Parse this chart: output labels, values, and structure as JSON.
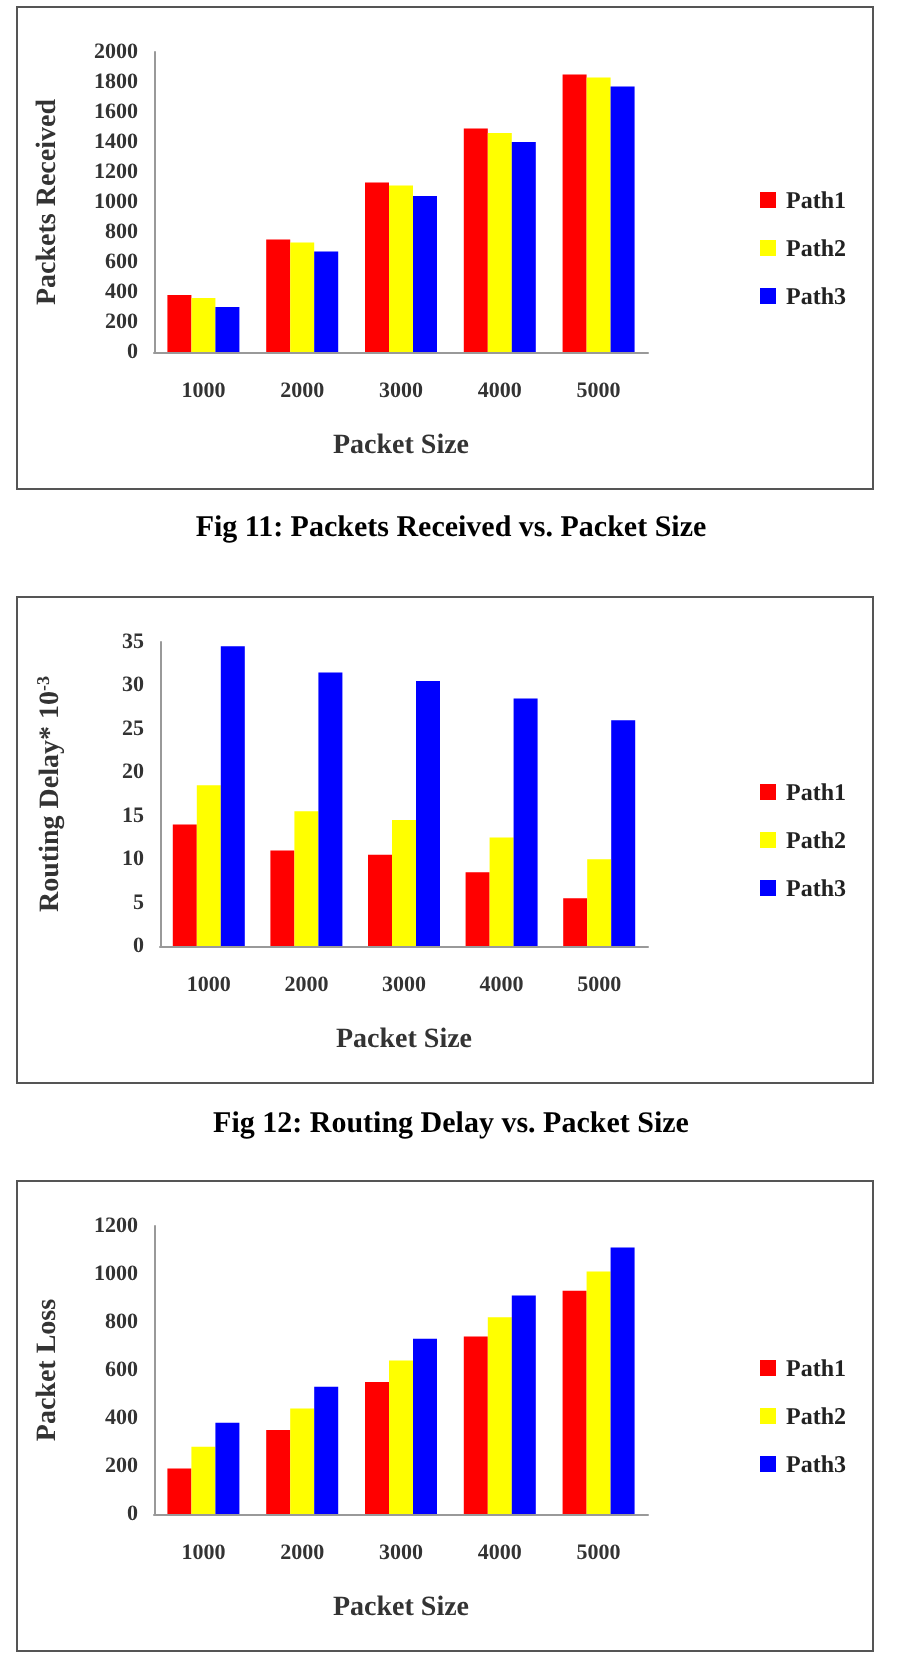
{
  "chart_data": [
    {
      "type": "bar",
      "title": "Fig 11: Packets Received vs. Packet Size",
      "xlabel": "Packet Size",
      "ylabel": "Packets Received",
      "categories": [
        "1000",
        "2000",
        "3000",
        "4000",
        "5000"
      ],
      "series": [
        {
          "name": "Path1",
          "color": "#ff0000",
          "values": [
            380,
            750,
            1130,
            1490,
            1850
          ]
        },
        {
          "name": "Path2",
          "color": "#ffff00",
          "values": [
            360,
            730,
            1110,
            1460,
            1830
          ]
        },
        {
          "name": "Path3",
          "color": "#0000ff",
          "values": [
            300,
            670,
            1040,
            1400,
            1770
          ]
        }
      ],
      "ylim": [
        0,
        2000
      ],
      "yticks": [
        0,
        200,
        400,
        600,
        800,
        1000,
        1200,
        1400,
        1600,
        1800,
        2000
      ],
      "grid": false,
      "legend": "right"
    },
    {
      "type": "bar",
      "title": "Fig 12: Routing Delay vs. Packet Size",
      "xlabel": "Packet Size",
      "ylabel": "Routing Delay* 10$^{-3}$",
      "categories": [
        "1000",
        "2000",
        "3000",
        "4000",
        "5000"
      ],
      "series": [
        {
          "name": "Path1",
          "color": "#ff0000",
          "values": [
            14,
            11,
            10.5,
            8.5,
            5.5
          ]
        },
        {
          "name": "Path2",
          "color": "#ffff00",
          "values": [
            18.5,
            15.5,
            14.5,
            12.5,
            10
          ]
        },
        {
          "name": "Path3",
          "color": "#0000ff",
          "values": [
            34.5,
            31.5,
            30.5,
            28.5,
            26
          ]
        }
      ],
      "ylim": [
        0,
        35
      ],
      "yticks": [
        0,
        5,
        10,
        15,
        20,
        25,
        30,
        35
      ],
      "grid": false,
      "legend": "right"
    },
    {
      "type": "bar",
      "xlabel": "Packet Size",
      "ylabel": "Packet Loss",
      "categories": [
        "1000",
        "2000",
        "3000",
        "4000",
        "5000"
      ],
      "series": [
        {
          "name": "Path1",
          "color": "#ff0000",
          "values": [
            190,
            350,
            550,
            740,
            930
          ]
        },
        {
          "name": "Path2",
          "color": "#ffff00",
          "values": [
            280,
            440,
            640,
            820,
            1010
          ]
        },
        {
          "name": "Path3",
          "color": "#0000ff",
          "values": [
            380,
            530,
            730,
            910,
            1110
          ]
        }
      ],
      "ylim": [
        0,
        1200
      ],
      "yticks": [
        0,
        200,
        400,
        600,
        800,
        1000,
        1200
      ],
      "grid": false,
      "legend": "right"
    }
  ]
}
